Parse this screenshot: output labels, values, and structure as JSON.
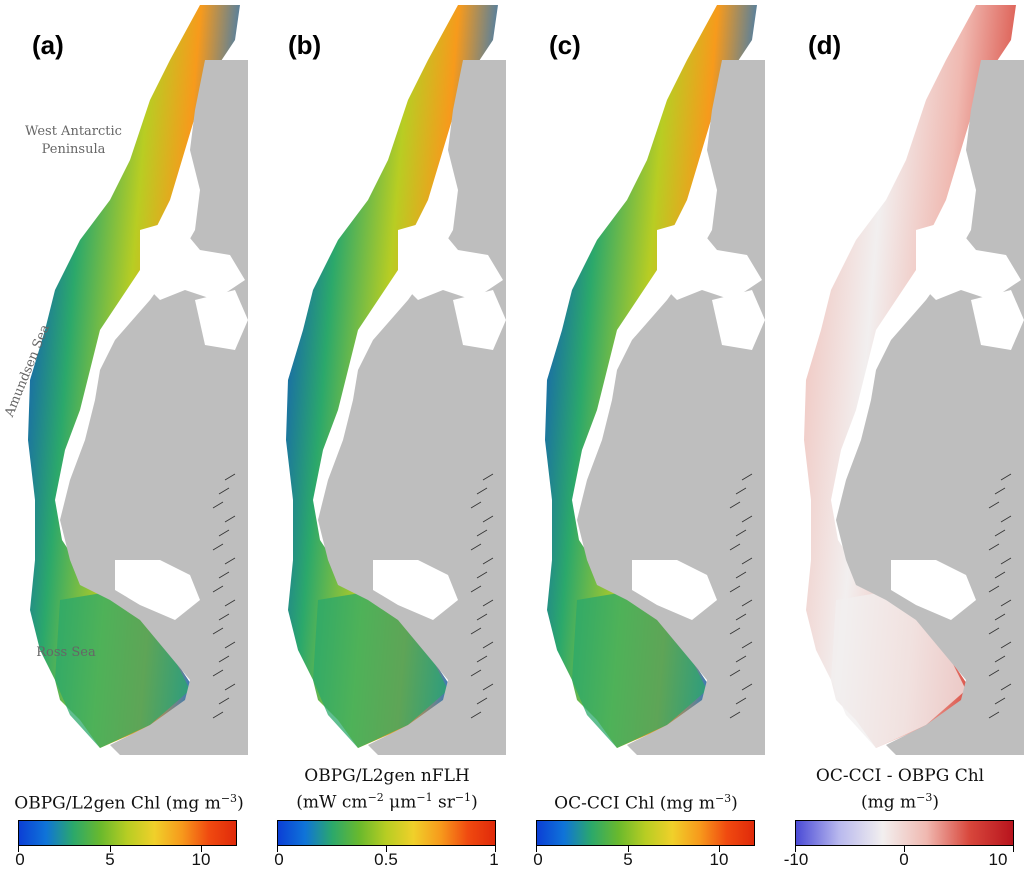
{
  "panels": [
    {
      "label": "(a)",
      "colorscale": "jet"
    },
    {
      "label": "(b)",
      "colorscale": "jet"
    },
    {
      "label": "(c)",
      "colorscale": "jet"
    },
    {
      "label": "(d)",
      "colorscale": "diverging"
    }
  ],
  "region_labels": {
    "wap_line1": "West Antarctic",
    "wap_line2": "Peninsula",
    "amundsen": "Amundsen Sea",
    "ross": "Ross Sea"
  },
  "colorbars": [
    {
      "title_line1": "OBPG/L2gen Chl (mg m",
      "title_line1_sup": "−3",
      "title_line1_end": ")",
      "title_line2": "",
      "ticks": [
        "0",
        "5",
        "10"
      ]
    },
    {
      "title_line1": "OBPG/L2gen nFLH",
      "title_line2": "(mW cm",
      "title_line2_sup": "−2",
      "title_line2_mid": " μm",
      "title_line2_sup2": "−1",
      "title_line2_mid2": " sr",
      "title_line2_sup3": "−1",
      "title_line2_end": ")",
      "ticks": [
        "0",
        "0.5",
        "1"
      ]
    },
    {
      "title_line1": "OC-CCI Chl (mg m",
      "title_line1_sup": "−3",
      "title_line1_end": ")",
      "title_line2": "",
      "ticks": [
        "0",
        "5",
        "10"
      ]
    },
    {
      "title_line1": "OC-CCI - OBPG Chl",
      "title_line2": "(mg m",
      "title_line2_sup": "−3",
      "title_line2_end": ")",
      "ticks": [
        "-10",
        "0",
        "10"
      ]
    }
  ],
  "colors": {
    "land": "#bebebe",
    "ice": "#ffffff",
    "jet": [
      "#0b3fd6",
      "#0f74d8",
      "#2ba86b",
      "#69b92d",
      "#b8cd23",
      "#f0d02a",
      "#f79a1c",
      "#f04a10",
      "#e02a0a"
    ],
    "diverging": [
      "#4b4bd6",
      "#b9b9ee",
      "#f2efef",
      "#f0b9b1",
      "#d8473c",
      "#b8141d"
    ]
  }
}
